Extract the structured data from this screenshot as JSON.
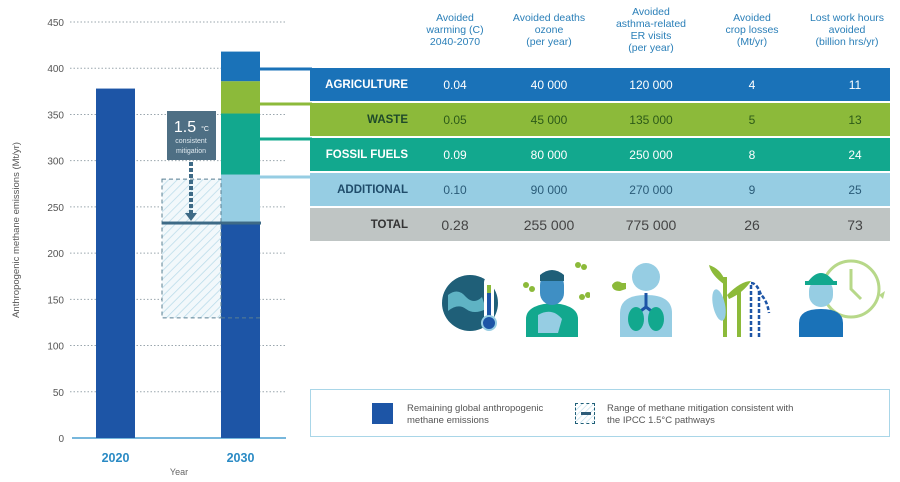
{
  "chart_data": {
    "type": "bar",
    "stacked": true,
    "categories": [
      "2020",
      "2030"
    ],
    "xlabel": "Year",
    "ylabel": "Anthropogenic methane emissions (Mt/yr)",
    "ylim": [
      0,
      450
    ],
    "yticks": [
      0,
      50,
      100,
      150,
      200,
      250,
      300,
      350,
      400,
      450
    ],
    "grid": "dotted horizontal",
    "series": [
      {
        "name": "Remaining global anthropogenic methane emissions",
        "color": "#1d55a6",
        "values": [
          378,
          232
        ]
      },
      {
        "name": "Additional",
        "color": "#96cde3",
        "values": [
          0,
          53
        ]
      },
      {
        "name": "Fossil fuels",
        "color": "#12a88e",
        "values": [
          0,
          66
        ]
      },
      {
        "name": "Waste",
        "color": "#8cba3a",
        "values": [
          0,
          35
        ]
      },
      {
        "name": "Agriculture",
        "color": "#1a72b8",
        "values": [
          0,
          32
        ]
      }
    ],
    "mitigation_range": {
      "low": 130,
      "high": 280,
      "target": 232
    },
    "annotation": {
      "value": "1.5",
      "unit": "°C",
      "line1": "consistent",
      "line2": "mitigation"
    }
  },
  "table": {
    "headers": [
      [
        "Avoided",
        "warming (C)",
        "2040-2070"
      ],
      [
        "Avoided deaths",
        "ozone",
        "(per year)"
      ],
      [
        "Avoided",
        "asthma-related",
        "ER visits",
        "(per year)"
      ],
      [
        "Avoided",
        "crop losses",
        "(Mt/yr)"
      ],
      [
        "Lost work hours",
        "avoided",
        "(billion hrs/yr)"
      ]
    ],
    "rows": [
      {
        "label": "AGRICULTURE",
        "color": "#1a72b8",
        "text": "#ffffff",
        "label_color": "#ffffff",
        "values": [
          "0.04",
          "40 000",
          "120 000",
          "4",
          "11"
        ]
      },
      {
        "label": "WASTE",
        "color": "#8cba3a",
        "text": "#2d5a18",
        "label_color": "#1f4a2a",
        "values": [
          "0.05",
          "45 000",
          "135 000",
          "5",
          "13"
        ]
      },
      {
        "label": "FOSSIL FUELS",
        "color": "#12a88e",
        "text": "#ffffff",
        "label_color": "#ffffff",
        "values": [
          "0.09",
          "80 000",
          "250 000",
          "8",
          "24"
        ]
      },
      {
        "label": "ADDITIONAL",
        "color": "#96cde3",
        "text": "#2a5b78",
        "label_color": "#1f4c6a",
        "values": [
          "0.10",
          "90 000",
          "270 000",
          "9",
          "25"
        ]
      },
      {
        "label": "TOTAL",
        "color": "#bfc5c4",
        "text": "#444444",
        "label_color": "#333333",
        "values": [
          "0.28",
          "255 000",
          "775 000",
          "26",
          "73"
        ]
      }
    ]
  },
  "legend": {
    "remaining": [
      "Remaining global anthropogenic",
      "methane emissions"
    ],
    "range": [
      "Range of methane mitigation consistent with",
      "the IPCC 1.5°C pathways"
    ]
  },
  "icons": [
    "globe-thermometer-icon",
    "person-coughing-ozone-icon",
    "lungs-asthma-icon",
    "crops-icon",
    "worker-clock-icon"
  ]
}
